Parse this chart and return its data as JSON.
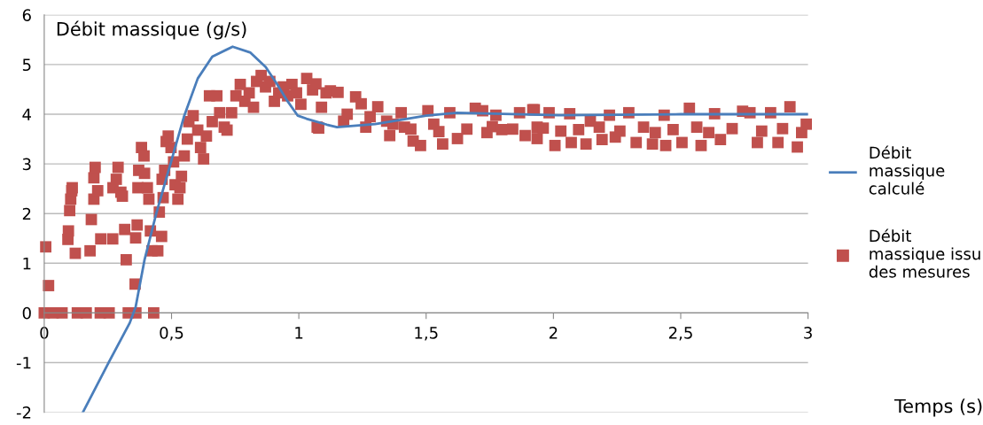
{
  "chart_data": {
    "type": "scatter",
    "ylabel": "Débit massique (g/s)",
    "xlabel": "Temps (s)",
    "xlim": [
      0,
      3
    ],
    "ylim": [
      -2,
      6
    ],
    "xticks": [
      0,
      {
        "value": 0.5,
        "label": "0,5"
      },
      1,
      {
        "value": 1.5,
        "label": "1,5"
      },
      2,
      {
        "value": 2.5,
        "label": "2,5"
      },
      3
    ],
    "yticks": [
      -2,
      -1,
      0,
      1,
      2,
      3,
      4,
      5,
      6
    ],
    "grid": "y",
    "legend": "right",
    "series": [
      {
        "name": "Débit\nmassique\ncalculé",
        "type": "line",
        "color": "#4a7ebb",
        "marker": "none",
        "line_style": "solid",
        "x": [
          0.152,
          0.255,
          0.336,
          0.359,
          0.394,
          0.44,
          0.498,
          0.55,
          0.603,
          0.66,
          0.74,
          0.81,
          0.87,
          0.915,
          0.956,
          0.996,
          1.03,
          1.11,
          1.15,
          1.3,
          1.5,
          1.62,
          2.02,
          2.5,
          3.0
        ],
        "values": [
          -2.0,
          -0.98,
          -0.2,
          0.12,
          1.07,
          2.0,
          3.04,
          3.97,
          4.72,
          5.16,
          5.36,
          5.24,
          4.95,
          4.6,
          4.26,
          3.97,
          3.91,
          3.79,
          3.74,
          3.8,
          3.97,
          4.03,
          3.98,
          4.0,
          4.0
        ]
      },
      {
        "name": "Débit\nmassique issu\ndes mesures",
        "color": "#c0504d",
        "marker": "square",
        "x": [
          0,
          0.035,
          0.07,
          0.13,
          0.165,
          0.22,
          0.255,
          0.33,
          0.36,
          0.43,
          0.006,
          0.017,
          0.093,
          0.095,
          0.1,
          0.104,
          0.108,
          0.11,
          0.122,
          0.18,
          0.185,
          0.195,
          0.195,
          0.2,
          0.21,
          0.222,
          0.269,
          0.27,
          0.283,
          0.29,
          0.301,
          0.307,
          0.316,
          0.322,
          0.357,
          0.359,
          0.365,
          0.368,
          0.371,
          0.382,
          0.392,
          0.394,
          0.405,
          0.411,
          0.417,
          0.423,
          0.446,
          0.452,
          0.461,
          0.467,
          0.463,
          0.473,
          0.479,
          0.487,
          0.498,
          0.508,
          0.514,
          0.525,
          0.533,
          0.539,
          0.55,
          0.562,
          0.568,
          0.585,
          0.603,
          0.614,
          0.626,
          0.637,
          0.649,
          0.66,
          0.678,
          0.689,
          0.707,
          0.718,
          0.736,
          0.753,
          0.77,
          0.788,
          0.805,
          0.822,
          0.834,
          0.852,
          0.869,
          0.886,
          0.904,
          0.921,
          0.939,
          0.956,
          0.973,
          0.991,
          1.008,
          1.031,
          1.054,
          1.072,
          1.089,
          1.107,
          1.067,
          1.078,
          1.124,
          1.154,
          1.176,
          1.19,
          1.223,
          1.245,
          1.263,
          1.28,
          1.31,
          1.345,
          1.357,
          1.37,
          1.402,
          1.415,
          1.44,
          1.449,
          1.478,
          1.507,
          1.53,
          1.55,
          1.565,
          1.593,
          1.623,
          1.66,
          1.693,
          1.722,
          1.739,
          1.76,
          1.774,
          1.797,
          1.84,
          1.867,
          1.889,
          1.919,
          1.925,
          1.936,
          1.936,
          1.96,
          1.983,
          2.006,
          2.029,
          2.064,
          2.07,
          2.099,
          2.128,
          2.145,
          2.18,
          2.191,
          2.22,
          2.243,
          2.261,
          2.296,
          2.325,
          2.354,
          2.389,
          2.4,
          2.435,
          2.441,
          2.47,
          2.505,
          2.534,
          2.563,
          2.58,
          2.61,
          2.633,
          2.656,
          2.702,
          2.743,
          2.772,
          2.801,
          2.818,
          2.853,
          2.882,
          2.9,
          2.929,
          2.958,
          2.975,
          2.993
        ],
        "values": [
          0,
          0,
          0,
          0,
          0,
          0,
          0,
          0,
          0,
          0,
          1.33,
          0.55,
          1.48,
          1.65,
          2.06,
          2.29,
          2.46,
          2.52,
          1.2,
          1.25,
          1.88,
          2.29,
          2.72,
          2.93,
          2.46,
          1.49,
          1.49,
          2.52,
          2.69,
          2.93,
          2.43,
          2.35,
          1.68,
          1.07,
          0.58,
          1.51,
          1.77,
          2.52,
          2.87,
          3.33,
          3.16,
          2.81,
          2.52,
          2.29,
          1.65,
          1.25,
          1.25,
          2.03,
          1.54,
          2.32,
          2.69,
          2.87,
          3.45,
          3.56,
          3.33,
          3.04,
          2.58,
          2.29,
          2.52,
          2.75,
          3.16,
          3.5,
          3.85,
          3.97,
          3.68,
          3.33,
          3.1,
          3.56,
          4.37,
          3.85,
          4.37,
          4.03,
          3.74,
          3.68,
          4.03,
          4.37,
          4.6,
          4.26,
          4.43,
          4.14,
          4.66,
          4.78,
          4.55,
          4.66,
          4.26,
          4.43,
          4.55,
          4.37,
          4.6,
          4.43,
          4.2,
          4.72,
          4.49,
          3.74,
          4.14,
          4.43,
          4.61,
          3.72,
          4.47,
          4.44,
          3.86,
          4.0,
          4.35,
          4.21,
          3.74,
          3.95,
          4.15,
          3.86,
          3.57,
          3.8,
          4.03,
          3.74,
          3.7,
          3.46,
          3.37,
          4.07,
          3.8,
          3.65,
          3.4,
          4.03,
          3.51,
          3.7,
          4.12,
          4.07,
          3.63,
          3.75,
          3.98,
          3.69,
          3.7,
          4.03,
          3.57,
          4.09,
          4.09,
          3.51,
          3.74,
          3.72,
          4.03,
          3.37,
          3.66,
          4.01,
          3.43,
          3.69,
          3.4,
          3.86,
          3.74,
          3.49,
          3.98,
          3.54,
          3.66,
          4.03,
          3.43,
          3.74,
          3.4,
          3.63,
          3.98,
          3.37,
          3.69,
          3.43,
          4.12,
          3.74,
          3.37,
          3.63,
          4.01,
          3.49,
          3.71,
          4.06,
          4.03,
          3.43,
          3.66,
          4.03,
          3.43,
          3.71,
          4.15,
          3.34,
          3.63,
          3.8
        ]
      }
    ]
  }
}
